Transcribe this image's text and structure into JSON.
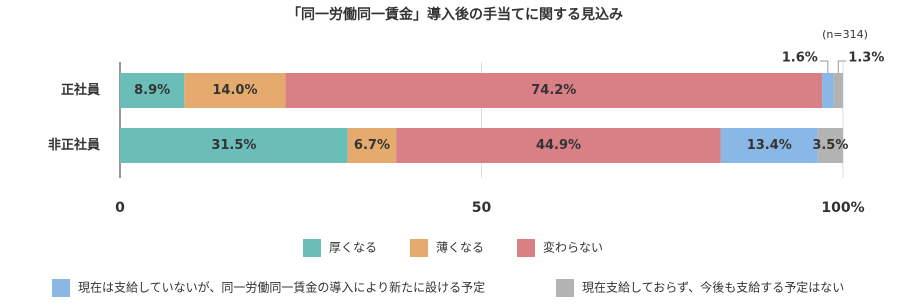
{
  "chart_data": {
    "type": "stacked-bar",
    "orientation": "horizontal",
    "title": "「同一労働同一賃金」導入後の手当てに関する見込み",
    "annotation": "(n=314)",
    "categories": [
      "正社員",
      "非正社員"
    ],
    "series": [
      {
        "name": "厚くなる",
        "color": "#6bbdb8",
        "values": [
          8.9,
          31.5
        ],
        "value_labels": [
          "8.9%",
          "31.5%"
        ]
      },
      {
        "name": "薄くなる",
        "color": "#e5ab6e",
        "values": [
          14.0,
          6.7
        ],
        "value_labels": [
          "14.0%",
          "6.7%"
        ]
      },
      {
        "name": "変わらない",
        "color": "#d97f86",
        "values": [
          74.2,
          44.9
        ],
        "value_labels": [
          "74.2%",
          "44.9%"
        ]
      },
      {
        "name": "現在は支給していないが、同一労働同一賃金の導入により新たに設ける予定",
        "color": "#8ab8e6",
        "values": [
          1.6,
          13.4
        ],
        "value_labels": [
          "1.6%",
          "13.4%"
        ]
      },
      {
        "name": "現在支給しておらず、今後も支給する予定はない",
        "color": "#b3b3b3",
        "values": [
          1.3,
          3.5
        ],
        "value_labels": [
          "1.3%",
          "3.5%"
        ]
      }
    ],
    "xlim": [
      0,
      100
    ],
    "xticks": [
      0,
      50,
      {
        "value": 100,
        "label": "100%"
      }
    ],
    "grid": true
  }
}
